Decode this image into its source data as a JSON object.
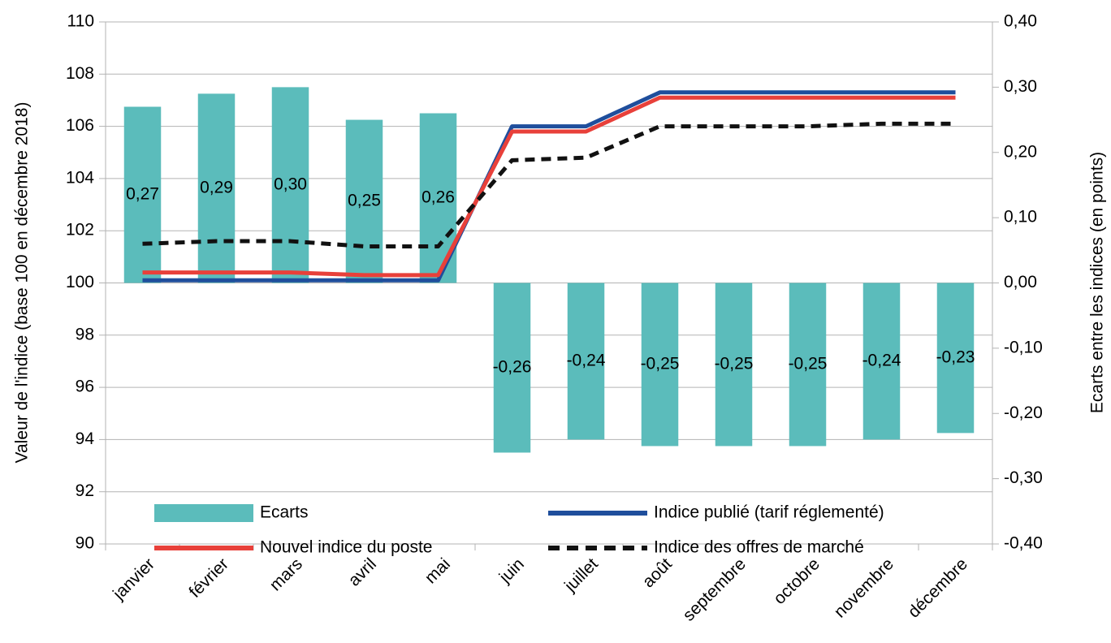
{
  "chart_data": {
    "type": "bar",
    "categories": [
      "janvier",
      "février",
      "mars",
      "avril",
      "mai",
      "juin",
      "juillet",
      "août",
      "septembre",
      "octobre",
      "novembre",
      "décembre"
    ],
    "series": [
      {
        "name": "Ecarts",
        "type": "bar",
        "axis": "y2",
        "color": "#5bbcbb",
        "values": [
          0.27,
          0.29,
          0.3,
          0.25,
          0.26,
          -0.26,
          -0.24,
          -0.25,
          -0.25,
          -0.25,
          -0.24,
          -0.23
        ],
        "value_labels": [
          "0,27",
          "0,29",
          "0,30",
          "0,25",
          "0,26",
          "-0,26",
          "-0,24",
          "-0,25",
          "-0,25",
          "-0,25",
          "-0,24",
          "-0,23"
        ]
      },
      {
        "name": "Indice publié (tarif réglementé)",
        "type": "line",
        "color": "#1f4e9c",
        "dashed": false,
        "values": [
          100.1,
          100.1,
          100.1,
          100.1,
          100.1,
          106.0,
          106.0,
          107.3,
          107.3,
          107.3,
          107.3,
          107.3
        ]
      },
      {
        "name": "Nouvel indice du poste",
        "type": "line",
        "color": "#e8403a",
        "dashed": false,
        "values": [
          100.4,
          100.4,
          100.4,
          100.3,
          100.3,
          105.8,
          105.8,
          107.1,
          107.1,
          107.1,
          107.1,
          107.1
        ]
      },
      {
        "name": "Indice des offres de marché",
        "type": "line",
        "color": "#111111",
        "dashed": true,
        "values": [
          101.5,
          101.6,
          101.6,
          101.4,
          101.4,
          104.7,
          104.8,
          106.0,
          106.0,
          106.0,
          106.1,
          106.1
        ]
      }
    ],
    "y_label": "Valeur de l'indice (base 100 en décembre 2018)",
    "y2_label": "Ecarts entre les indices (en points)",
    "ylim": [
      90,
      110
    ],
    "yticks": [
      90,
      92,
      94,
      96,
      98,
      100,
      102,
      104,
      106,
      108,
      110
    ],
    "y2lim": [
      -0.4,
      0.4
    ],
    "y2ticks": [
      {
        "value": -0.4,
        "label": "-0,40"
      },
      {
        "value": -0.3,
        "label": "-0,30"
      },
      {
        "value": -0.2,
        "label": "-0,20"
      },
      {
        "value": -0.1,
        "label": "-0,10"
      },
      {
        "value": 0,
        "label": "0,00"
      },
      {
        "value": 0.1,
        "label": "0,10"
      },
      {
        "value": 0.2,
        "label": "0,20"
      },
      {
        "value": 0.3,
        "label": "0,30"
      },
      {
        "value": 0.4,
        "label": "0,40"
      }
    ],
    "grid": true,
    "legend": "bottom"
  }
}
